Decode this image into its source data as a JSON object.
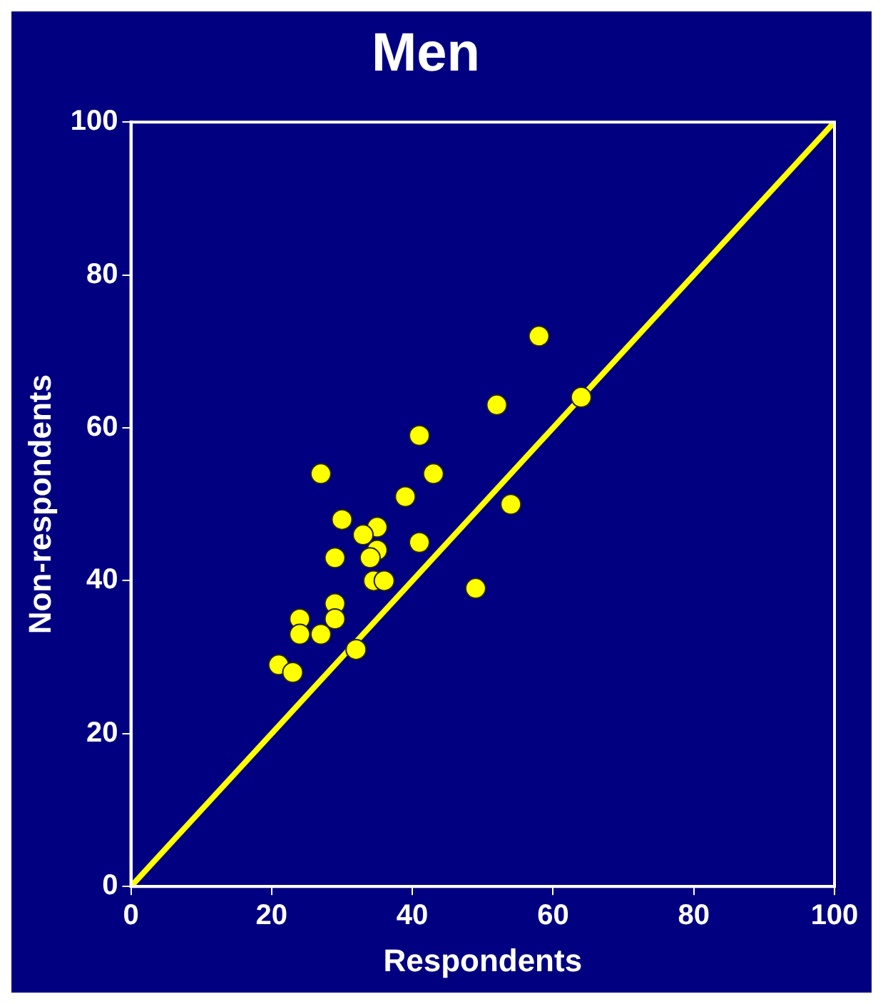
{
  "chart_data": {
    "type": "scatter",
    "title": "Men",
    "xlabel": "Respondents",
    "ylabel": "Non-respondents",
    "xlim": [
      0,
      100
    ],
    "ylim": [
      0,
      100
    ],
    "xticks": [
      0,
      20,
      40,
      60,
      80,
      100
    ],
    "yticks": [
      0,
      20,
      40,
      60,
      80,
      100
    ],
    "grid": false,
    "legend": false,
    "marker": "circle",
    "series": [
      {
        "color": "#ffff00",
        "x": [
          58,
          64,
          52,
          41,
          27,
          43,
          39,
          54,
          30,
          35,
          33,
          41,
          35,
          34,
          29,
          34.5,
          36,
          49,
          29,
          29,
          24,
          24,
          27,
          32,
          21,
          23
        ],
        "values": [
          72,
          64,
          63,
          59,
          54,
          54,
          51,
          50,
          48,
          47,
          46,
          45,
          44,
          43,
          43,
          40,
          40,
          39,
          37,
          35,
          35,
          33,
          33,
          31,
          29,
          28
        ]
      },
      {
        "type": "line",
        "color": "#ffff00",
        "marker": "none",
        "x": [
          0,
          100
        ],
        "values": [
          0,
          100
        ]
      }
    ]
  }
}
